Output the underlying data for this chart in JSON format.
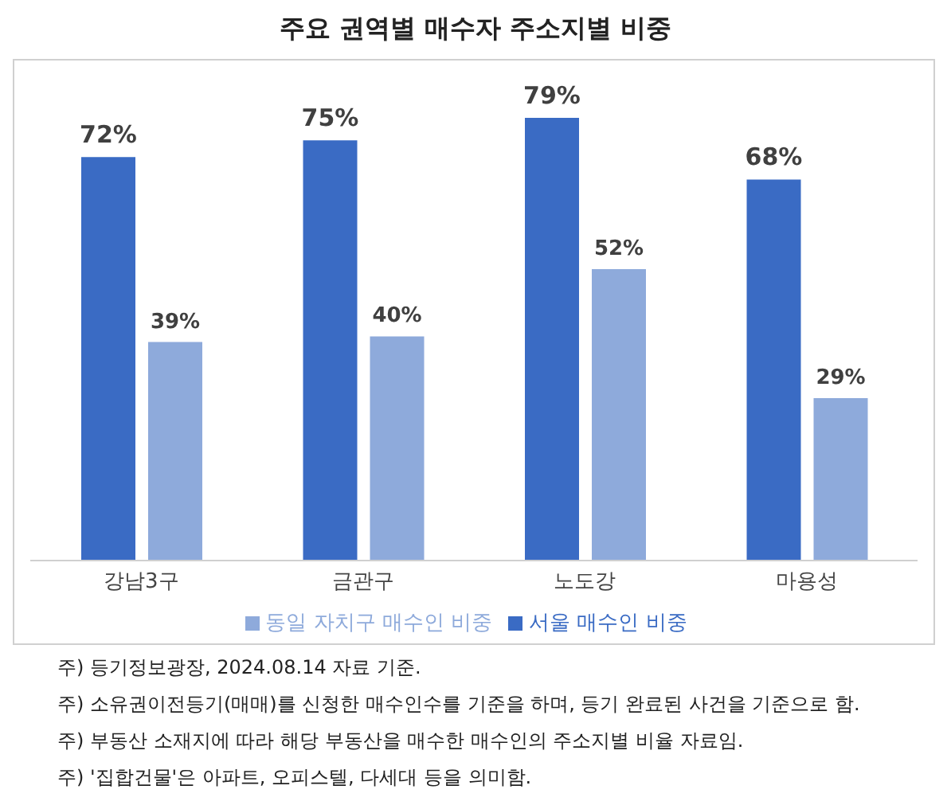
{
  "chart_data": {
    "type": "bar",
    "title": "주요 권역별 매수자 주소지별 비중",
    "categories": [
      "강남3구",
      "금관구",
      "노도강",
      "마용성"
    ],
    "series": [
      {
        "name": "서울 매수인 비중",
        "color": "#3a6bc4",
        "values": [
          72,
          75,
          79,
          68
        ],
        "value_labels": [
          "72%",
          "75%",
          "79%",
          "68%"
        ]
      },
      {
        "name": "동일 자치구 매수인 비중",
        "color": "#8eaadb",
        "values": [
          39,
          40,
          52,
          29
        ],
        "value_labels": [
          "39%",
          "40%",
          "52%",
          "29%"
        ]
      }
    ],
    "legend": "bottom",
    "grid": false,
    "annotations": [
      "주) 등기정보광장, 2024.08.14 자료 기준.",
      "주) 소유권이전등기(매매)를 신청한 매수인수를 기준을 하며, 등기 완료된 사건을 기준으로 함.",
      "주) 부동산 소재지에 따라 해당 부동산을 매수한 매수인의 주소지별 비율 자료임.",
      "주) '집합건물'은 아파트, 오피스텔, 다세대 등을 의미함."
    ]
  }
}
